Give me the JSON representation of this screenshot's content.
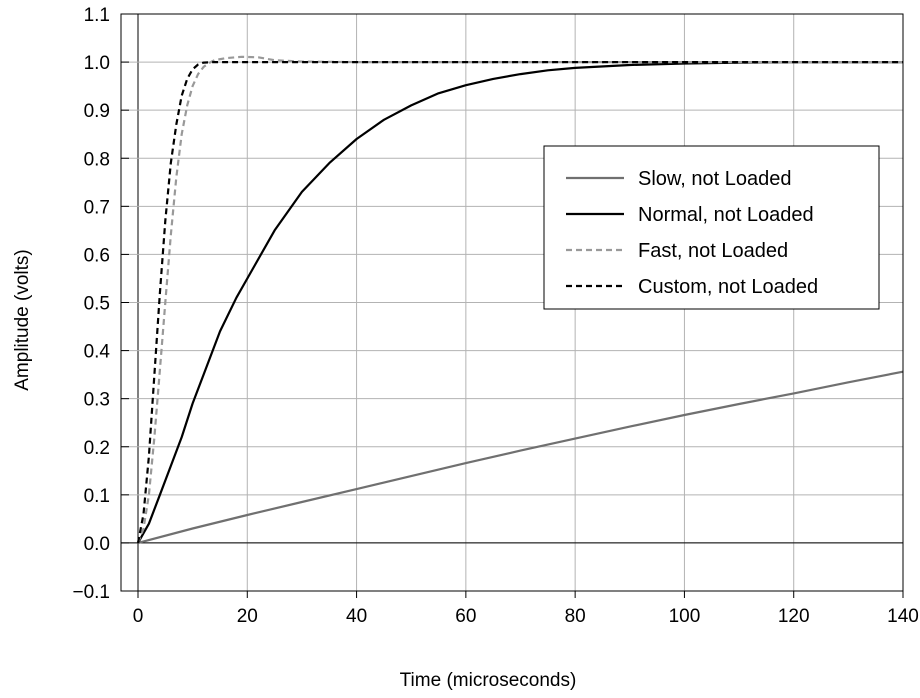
{
  "chart_data": {
    "type": "line",
    "title": "",
    "xlabel": "Time (microseconds)",
    "ylabel": "Amplitude (volts)",
    "xlim": [
      0,
      140
    ],
    "ylim": [
      -0.1,
      1.1
    ],
    "x_ticks": [
      0,
      20,
      40,
      60,
      80,
      100,
      120,
      140
    ],
    "x_tick_labels": [
      "0",
      "20",
      "40",
      "60",
      "80",
      "100",
      "120",
      "140"
    ],
    "y_ticks": [
      -0.1,
      0.0,
      0.1,
      0.2,
      0.3,
      0.4,
      0.5,
      0.6,
      0.7,
      0.8,
      0.9,
      1.0,
      1.1
    ],
    "y_tick_labels": [
      "−0.1",
      "0.0",
      "0.1",
      "0.2",
      "0.3",
      "0.4",
      "0.5",
      "0.6",
      "0.7",
      "0.8",
      "0.9",
      "1.0",
      "1.1"
    ],
    "grid": true,
    "legend_position": "right",
    "series": [
      {
        "name": "Slow, not Loaded",
        "color": "#707070",
        "dash": "solid",
        "x": [
          0,
          10,
          20,
          30,
          40,
          50,
          60,
          70,
          80,
          90,
          100,
          110,
          120,
          130,
          140
        ],
        "y": [
          0.0,
          0.03,
          0.058,
          0.085,
          0.112,
          0.139,
          0.166,
          0.192,
          0.217,
          0.242,
          0.266,
          0.289,
          0.311,
          0.334,
          0.356
        ]
      },
      {
        "name": "Normal, not Loaded",
        "color": "#000000",
        "dash": "solid",
        "x": [
          0,
          2,
          4,
          6,
          8,
          10,
          12,
          15,
          18,
          20,
          25,
          30,
          35,
          40,
          45,
          50,
          55,
          60,
          65,
          70,
          75,
          80,
          90,
          100,
          110,
          120,
          130,
          140
        ],
        "y": [
          0.0,
          0.04,
          0.1,
          0.16,
          0.22,
          0.29,
          0.35,
          0.44,
          0.51,
          0.55,
          0.65,
          0.73,
          0.79,
          0.84,
          0.88,
          0.91,
          0.935,
          0.952,
          0.965,
          0.975,
          0.983,
          0.988,
          0.994,
          0.997,
          0.999,
          1.0,
          1.0,
          1.0
        ]
      },
      {
        "name": "Fast, not Loaded",
        "color": "#999999",
        "dash": "dashed",
        "x": [
          0,
          1,
          2,
          3,
          4,
          5,
          6,
          7,
          8,
          9,
          10,
          11,
          12,
          13,
          14,
          16,
          19,
          22,
          25,
          30,
          40,
          60,
          80,
          100,
          120,
          140
        ],
        "y": [
          0.0,
          0.03,
          0.1,
          0.22,
          0.36,
          0.5,
          0.64,
          0.76,
          0.85,
          0.91,
          0.95,
          0.975,
          0.99,
          0.998,
          1.004,
          1.008,
          1.011,
          1.01,
          1.004,
          1.001,
          1.0,
          1.0,
          1.0,
          1.0,
          1.0,
          1.0
        ]
      },
      {
        "name": "Custom, not Loaded",
        "color": "#000000",
        "dash": "dashed",
        "x": [
          0,
          1,
          2,
          3,
          4,
          5,
          6,
          7,
          8,
          9,
          10,
          11,
          12,
          14,
          16,
          20,
          30,
          60,
          90,
          120,
          140
        ],
        "y": [
          0.0,
          0.06,
          0.18,
          0.35,
          0.52,
          0.67,
          0.79,
          0.87,
          0.93,
          0.965,
          0.985,
          0.995,
          0.999,
          1.0,
          1.0,
          1.0,
          1.0,
          1.0,
          1.0,
          1.0,
          1.0
        ]
      }
    ]
  }
}
